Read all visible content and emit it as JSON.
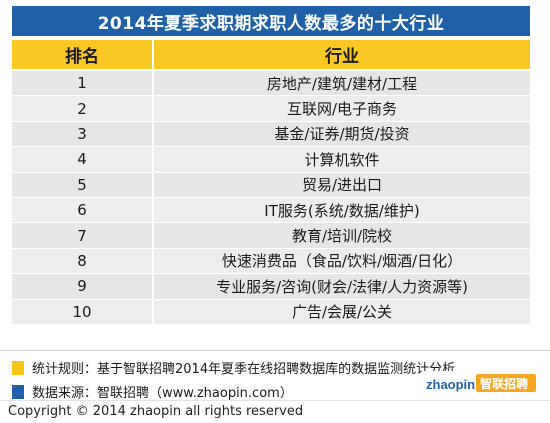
{
  "title": "2014年夏季求职期求职人数最多的十大行业",
  "table": {
    "headers": {
      "rank": "排名",
      "industry": "行业"
    },
    "rows": [
      {
        "rank": "1",
        "industry": "房地产/建筑/建材/工程"
      },
      {
        "rank": "2",
        "industry": "互联网/电子商务"
      },
      {
        "rank": "3",
        "industry": "基金/证券/期货/投资"
      },
      {
        "rank": "4",
        "industry": "计算机软件"
      },
      {
        "rank": "5",
        "industry": "贸易/进出口"
      },
      {
        "rank": "6",
        "industry": "IT服务(系统/数据/维护)"
      },
      {
        "rank": "7",
        "industry": "教育/培训/院校"
      },
      {
        "rank": "8",
        "industry": "快速消费品（食品/饮料/烟酒/日化）"
      },
      {
        "rank": "9",
        "industry": "专业服务/咨询(财会/法律/人力资源等)"
      },
      {
        "rank": "10",
        "industry": "广告/会展/公关"
      }
    ]
  },
  "legend": {
    "rule": "统计规则：基于智联招聘2014年夏季在线招聘数据库的数据监测统计分析",
    "source": "数据来源：智联招聘（www.zhaopin.com）"
  },
  "logo_text": "智联招聘",
  "logo_sub": "zhaopin",
  "copyright": "Copyright  ©  2014 zhaopin all rights reserved",
  "colors": {
    "title_bg": "#1f60a8",
    "header_bg": "#fac824",
    "rule_swatch": "#f5c518",
    "source_swatch": "#1f60a8"
  }
}
